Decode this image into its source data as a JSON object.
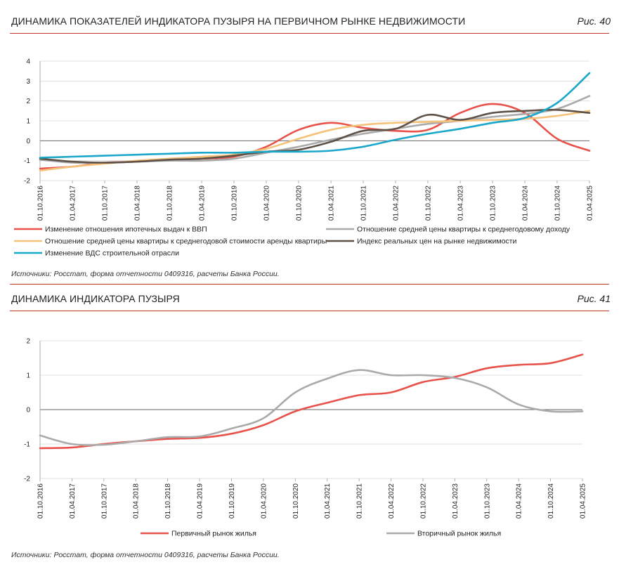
{
  "colors": {
    "rule": "#c0392b",
    "red": "#e8524a",
    "gray": "#aaaaaa",
    "orange": "#f5c27a",
    "dark": "#5e5148",
    "blue": "#1aa7c9"
  },
  "fig40": {
    "title": "ДИНАМИКА ПОКАЗАТЕЛЕЙ ИНДИКАТОРА ПУЗЫРЯ НА ПЕРВИЧНОМ РЫНКЕ НЕДВИЖИМОСТИ",
    "label": "Рис. 40",
    "source": "Источники: Росстат, форма отчетности 0409316, расчеты Банка России."
  },
  "fig41": {
    "title": "ДИНАМИКА ИНДИКАТОРА ПУЗЫРЯ",
    "label": "Рис. 41",
    "source": "Источники: Росстат, форма отчетности 0409316, расчеты Банка России."
  },
  "chart_data": [
    {
      "type": "line",
      "title": "ДИНАМИКА ПОКАЗАТЕЛЕЙ ИНДИКАТОРА ПУЗЫРЯ НА ПЕРВИЧНОМ РЫНКЕ НЕДВИЖИМОСТИ",
      "ylim": [
        -2,
        4
      ],
      "yticks": [
        -2,
        -1,
        0,
        1,
        2,
        3,
        4
      ],
      "categories": [
        "01.10.2016",
        "01.04.2017",
        "01.10.2017",
        "01.04.2018",
        "01.10.2018",
        "01.04.2019",
        "01.10.2019",
        "01.04.2020",
        "01.10.2020",
        "01.04.2021",
        "01.10.2021",
        "01.04.2022",
        "01.10.2022",
        "01.04.2023",
        "01.10.2023",
        "01.04.2024",
        "01.10.2024",
        "01.04.2025"
      ],
      "series": [
        {
          "name": "Изменение отношения ипотечных выдач к ВВП",
          "color": "red",
          "values": [
            -1.4,
            -1.3,
            -1.1,
            -1.05,
            -0.95,
            -0.9,
            -0.8,
            -0.3,
            0.55,
            0.9,
            0.65,
            0.5,
            0.55,
            1.4,
            1.85,
            1.4,
            0.1,
            -0.5
          ]
        },
        {
          "name": "Отношение средней цены квартиры к среднегодовому доходу",
          "color": "gray",
          "values": [
            -0.95,
            -1.1,
            -1.1,
            -1.05,
            -1.0,
            -1.0,
            -0.9,
            -0.6,
            -0.3,
            0.05,
            0.35,
            0.6,
            0.85,
            1.0,
            1.2,
            1.35,
            1.6,
            2.25
          ]
        },
        {
          "name": "Отношение средней цены квартиры к среднегодовой стоимости аренды квартиры",
          "color": "orange",
          "values": [
            -1.5,
            -1.3,
            -1.15,
            -1.0,
            -0.9,
            -0.8,
            -0.7,
            -0.4,
            0.1,
            0.55,
            0.8,
            0.9,
            0.95,
            1.0,
            1.05,
            1.1,
            1.25,
            1.5
          ]
        },
        {
          "name": "Индекс реальных цен на рынке недвижимости",
          "color": "dark",
          "values": [
            -0.9,
            -1.05,
            -1.1,
            -1.05,
            -0.95,
            -0.9,
            -0.75,
            -0.55,
            -0.45,
            -0.05,
            0.5,
            0.6,
            1.3,
            1.05,
            1.4,
            1.5,
            1.55,
            1.4
          ]
        },
        {
          "name": "Изменение ВДС строительной отрасли",
          "color": "blue",
          "values": [
            -0.85,
            -0.8,
            -0.75,
            -0.7,
            -0.65,
            -0.6,
            -0.6,
            -0.55,
            -0.55,
            -0.5,
            -0.3,
            0.05,
            0.35,
            0.6,
            0.9,
            1.15,
            1.9,
            3.4
          ]
        }
      ]
    },
    {
      "type": "line",
      "title": "ДИНАМИКА ИНДИКАТОРА ПУЗЫРЯ",
      "ylim": [
        -2,
        2
      ],
      "yticks": [
        -2,
        -1,
        0,
        1,
        2
      ],
      "categories": [
        "01.10.2016",
        "01.04.2017",
        "01.10.2017",
        "01.04.2018",
        "01.10.2018",
        "01.04.2019",
        "01.10.2019",
        "01.04.2020",
        "01.10.2020",
        "01.04.2021",
        "01.10.2021",
        "01.04.2022",
        "01.10.2022",
        "01.04.2023",
        "01.10.2023",
        "01.04.2024",
        "01.10.2024",
        "01.04.2025"
      ],
      "series": [
        {
          "name": "Первичный рынок жилья",
          "color": "red",
          "values": [
            -1.12,
            -1.1,
            -1.0,
            -0.92,
            -0.85,
            -0.82,
            -0.7,
            -0.45,
            -0.05,
            0.2,
            0.42,
            0.5,
            0.8,
            0.95,
            1.2,
            1.3,
            1.35,
            1.6
          ]
        },
        {
          "name": "Вторичный рынок жилья",
          "color": "gray",
          "values": [
            -0.75,
            -1.0,
            -1.02,
            -0.92,
            -0.8,
            -0.78,
            -0.55,
            -0.25,
            0.5,
            0.9,
            1.15,
            1.0,
            1.0,
            0.92,
            0.65,
            0.15,
            -0.05,
            -0.05
          ]
        }
      ]
    }
  ]
}
